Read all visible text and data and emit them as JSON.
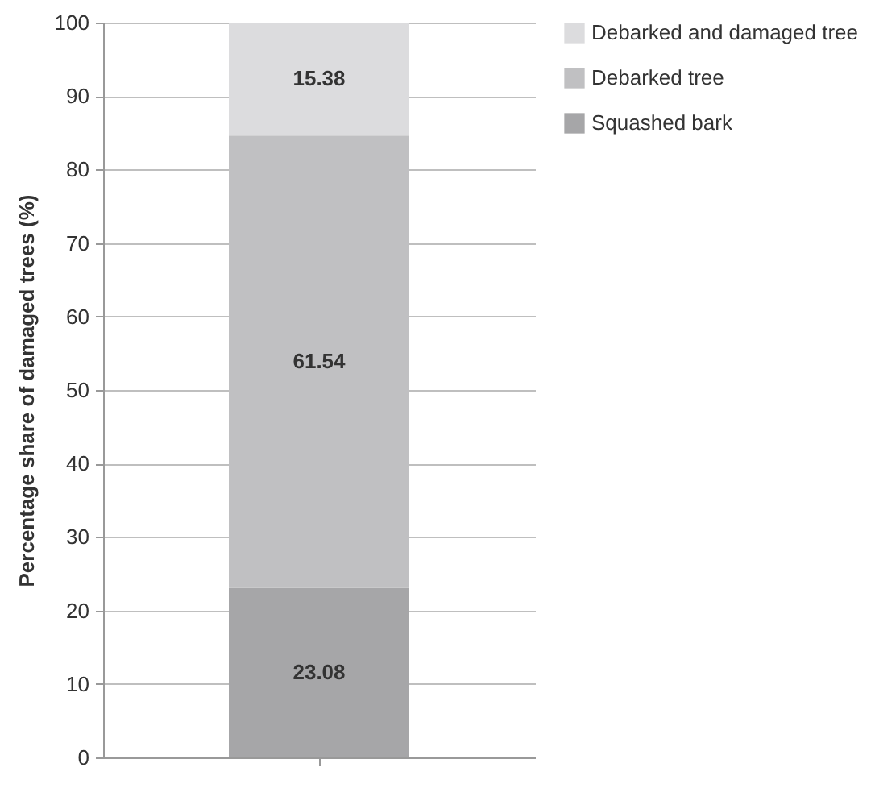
{
  "chart_data": {
    "type": "bar",
    "stacked": true,
    "ylabel": "Percentage share of damaged trees (%)",
    "categories": [
      null
    ],
    "series": [
      {
        "name": "Squashed bark",
        "color": "#a6a6a8",
        "values": [
          23.08
        ]
      },
      {
        "name": "Debarked tree",
        "color": "#c0c0c2",
        "values": [
          61.54
        ]
      },
      {
        "name": "Debarked and damaged tree",
        "color": "#dcdcde",
        "values": [
          15.38
        ]
      }
    ],
    "ylim": [
      0,
      100
    ],
    "yticks": [
      0,
      10,
      20,
      30,
      40,
      50,
      60,
      70,
      80,
      90,
      100
    ],
    "grid": "y",
    "legend": "right",
    "data_labels": true
  }
}
